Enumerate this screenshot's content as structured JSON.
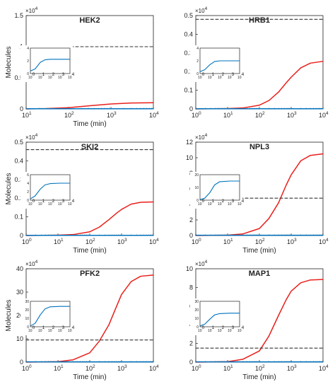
{
  "chart_data": [
    {
      "type": "line",
      "title": "HEK2",
      "xlabel": "Time (min)",
      "ylabel": "Molecules",
      "xscale": "log",
      "xlim": [
        10,
        10000
      ],
      "ylim": [
        0,
        1.5
      ],
      "yticks": [
        "0",
        "0.5",
        "1",
        "1.5"
      ],
      "ymult": "×10⁴",
      "series": [
        {
          "color": "#e8201b",
          "style": "solid",
          "x": [
            10,
            30,
            100,
            300,
            1000,
            3000,
            10000
          ],
          "y": [
            0,
            0.005,
            0.02,
            0.05,
            0.08,
            0.095,
            0.1
          ]
        },
        {
          "color": "#0072bd",
          "style": "solid",
          "x": [
            10,
            10000
          ],
          "y": [
            0.003,
            0.003
          ]
        },
        {
          "color": "#333333",
          "style": "dashed",
          "x": [
            10,
            10000
          ],
          "y": [
            1,
            1
          ]
        }
      ],
      "inset": {
        "xscale": "log",
        "xlim": [
          1,
          10000
        ],
        "ylim": [
          0,
          5
        ],
        "yticks": [
          "0",
          "2",
          "4"
        ],
        "series": [
          {
            "color": "#0072bd",
            "x": [
              1,
              3,
              10,
              30,
              100,
              1000,
              10000
            ],
            "y": [
              0.5,
              0.9,
              2.2,
              2.7,
              2.8,
              2.8,
              2.8
            ]
          }
        ]
      }
    },
    {
      "type": "line",
      "title": "HRB1",
      "xlabel": "",
      "ylabel": "",
      "xscale": "log",
      "xlim": [
        1,
        10000
      ],
      "ylim": [
        0,
        0.5
      ],
      "yticks": [
        "0",
        "0.1",
        "0.2",
        "0.3",
        "0.4",
        "0.5"
      ],
      "ymult": "×10⁴",
      "series": [
        {
          "color": "#e8201b",
          "style": "solid",
          "x": [
            1,
            10,
            30,
            100,
            200,
            400,
            700,
            1000,
            2000,
            4000,
            10000
          ],
          "y": [
            0,
            0.002,
            0.005,
            0.02,
            0.045,
            0.09,
            0.14,
            0.17,
            0.22,
            0.245,
            0.255
          ]
        },
        {
          "color": "#0072bd",
          "style": "solid",
          "x": [
            1,
            10000
          ],
          "y": [
            0.001,
            0.001
          ]
        },
        {
          "color": "#333333",
          "style": "dashed",
          "x": [
            1,
            10000
          ],
          "y": [
            0.48,
            0.48
          ]
        }
      ],
      "inset": {
        "xscale": "log",
        "xlim": [
          1,
          10000
        ],
        "ylim": [
          0,
          4
        ],
        "yticks": [
          "0",
          "2",
          "4"
        ],
        "series": [
          {
            "color": "#0072bd",
            "x": [
              1,
              3,
              10,
              30,
              100,
              1000,
              10000
            ],
            "y": [
              0.3,
              0.6,
              1.4,
              1.9,
              2.0,
              2.0,
              2.0
            ]
          }
        ]
      }
    },
    {
      "type": "line",
      "title": "SKI2",
      "xlabel": "Time (min)",
      "ylabel": "Molecules",
      "xscale": "log",
      "xlim": [
        1,
        10000
      ],
      "ylim": [
        0,
        0.5
      ],
      "yticks": [
        "0",
        "0.1",
        "0.2",
        "0.3",
        "0.4",
        "0.5"
      ],
      "ymult": "×10⁴",
      "series": [
        {
          "color": "#e8201b",
          "style": "solid",
          "x": [
            1,
            10,
            30,
            100,
            200,
            400,
            700,
            1000,
            2000,
            4000,
            10000
          ],
          "y": [
            0,
            0.002,
            0.005,
            0.02,
            0.045,
            0.085,
            0.12,
            0.14,
            0.168,
            0.178,
            0.18
          ]
        },
        {
          "color": "#0072bd",
          "style": "solid",
          "x": [
            1,
            10000
          ],
          "y": [
            0.001,
            0.001
          ]
        },
        {
          "color": "#333333",
          "style": "dashed",
          "x": [
            1,
            10000
          ],
          "y": [
            0.46,
            0.46
          ]
        }
      ],
      "inset": {
        "xscale": "log",
        "xlim": [
          1,
          10000
        ],
        "ylim": [
          0,
          6
        ],
        "yticks": [
          "0",
          "2",
          "4",
          "6"
        ],
        "series": [
          {
            "color": "#0072bd",
            "x": [
              1,
              3,
              10,
              30,
              100,
              1000,
              10000
            ],
            "y": [
              0.3,
              1.0,
              2.6,
              3.6,
              3.9,
              4.0,
              4.0
            ]
          }
        ]
      }
    },
    {
      "type": "line",
      "title": "NPL3",
      "xlabel": "Time (min)",
      "ylabel": "",
      "xscale": "log",
      "xlim": [
        1,
        10000
      ],
      "ylim": [
        0,
        12
      ],
      "yticks": [
        "0",
        "2",
        "4",
        "6",
        "8",
        "10",
        "12"
      ],
      "ymult": "×10⁴",
      "series": [
        {
          "color": "#e8201b",
          "style": "solid",
          "x": [
            1,
            10,
            30,
            100,
            200,
            400,
            700,
            1000,
            2000,
            4000,
            10000
          ],
          "y": [
            0,
            0.05,
            0.2,
            0.9,
            2.2,
            4.2,
            6.5,
            7.8,
            9.6,
            10.3,
            10.5
          ]
        },
        {
          "color": "#0072bd",
          "style": "solid",
          "x": [
            1,
            10000
          ],
          "y": [
            0.03,
            0.03
          ]
        },
        {
          "color": "#333333",
          "style": "dashed",
          "x": [
            1,
            10000
          ],
          "y": [
            4.8,
            4.8
          ]
        }
      ],
      "inset": {
        "xscale": "log",
        "xlim": [
          1,
          10000
        ],
        "ylim": [
          0,
          20
        ],
        "yticks": [
          "0",
          "10",
          "20"
        ],
        "series": [
          {
            "color": "#0072bd",
            "x": [
              1,
              3,
              10,
              30,
              100,
              1000,
              10000
            ],
            "y": [
              0.5,
              1.5,
              6.0,
              12.0,
              14.5,
              15.0,
              15.0
            ]
          }
        ]
      }
    },
    {
      "type": "line",
      "title": "PFK2",
      "xlabel": "Time (min)",
      "ylabel": "Molecules",
      "xscale": "log",
      "xlim": [
        1,
        10000
      ],
      "ylim": [
        0,
        40
      ],
      "yticks": [
        "0",
        "10",
        "20",
        "30",
        "40"
      ],
      "ymult": "×10⁴",
      "series": [
        {
          "color": "#e8201b",
          "style": "solid",
          "x": [
            1,
            10,
            30,
            100,
            200,
            400,
            700,
            1000,
            2000,
            4000,
            10000
          ],
          "y": [
            0,
            0.2,
            1.0,
            4.0,
            9.0,
            16.0,
            24.0,
            29.0,
            34.5,
            36.8,
            37.3
          ]
        },
        {
          "color": "#0072bd",
          "style": "solid",
          "x": [
            1,
            10000
          ],
          "y": [
            0.1,
            0.1
          ]
        },
        {
          "color": "#333333",
          "style": "dashed",
          "x": [
            1,
            10000
          ],
          "y": [
            9.5,
            9.5
          ]
        }
      ],
      "inset": {
        "xscale": "log",
        "xlim": [
          1,
          10000
        ],
        "ylim": [
          0,
          30
        ],
        "yticks": [
          "0",
          "10",
          "20",
          "30"
        ],
        "series": [
          {
            "color": "#0072bd",
            "x": [
              1,
              3,
              10,
              30,
              100,
              1000,
              10000
            ],
            "y": [
              1.0,
              4.0,
              14.0,
              21.0,
              23.5,
              24.0,
              24.0
            ]
          }
        ]
      }
    },
    {
      "type": "line",
      "title": "MAP1",
      "xlabel": "Time (min)",
      "ylabel": "",
      "xscale": "log",
      "xlim": [
        1,
        10000
      ],
      "ylim": [
        0,
        10
      ],
      "yticks": [
        "0",
        "2",
        "4",
        "6",
        "8",
        "10"
      ],
      "ymult": "×10⁴",
      "series": [
        {
          "color": "#e8201b",
          "style": "solid",
          "x": [
            1,
            10,
            30,
            100,
            200,
            400,
            700,
            1000,
            2000,
            4000,
            10000
          ],
          "y": [
            0,
            0.05,
            0.3,
            1.2,
            2.8,
            5.0,
            6.7,
            7.6,
            8.5,
            8.8,
            8.85
          ]
        },
        {
          "color": "#0072bd",
          "style": "solid",
          "x": [
            1,
            10000
          ],
          "y": [
            0.03,
            0.03
          ]
        },
        {
          "color": "#333333",
          "style": "dashed",
          "x": [
            1,
            10000
          ],
          "y": [
            1.5,
            1.5
          ]
        }
      ],
      "inset": {
        "xscale": "log",
        "xlim": [
          1,
          10000
        ],
        "ylim": [
          0,
          30
        ],
        "yticks": [
          "0",
          "10",
          "20",
          "30"
        ],
        "series": [
          {
            "color": "#0072bd",
            "x": [
              1,
              3,
              10,
              30,
              100,
              1000,
              10000
            ],
            "y": [
              1.0,
              3.0,
              9.0,
              14.0,
              15.5,
              16.0,
              16.0
            ]
          }
        ]
      }
    }
  ]
}
